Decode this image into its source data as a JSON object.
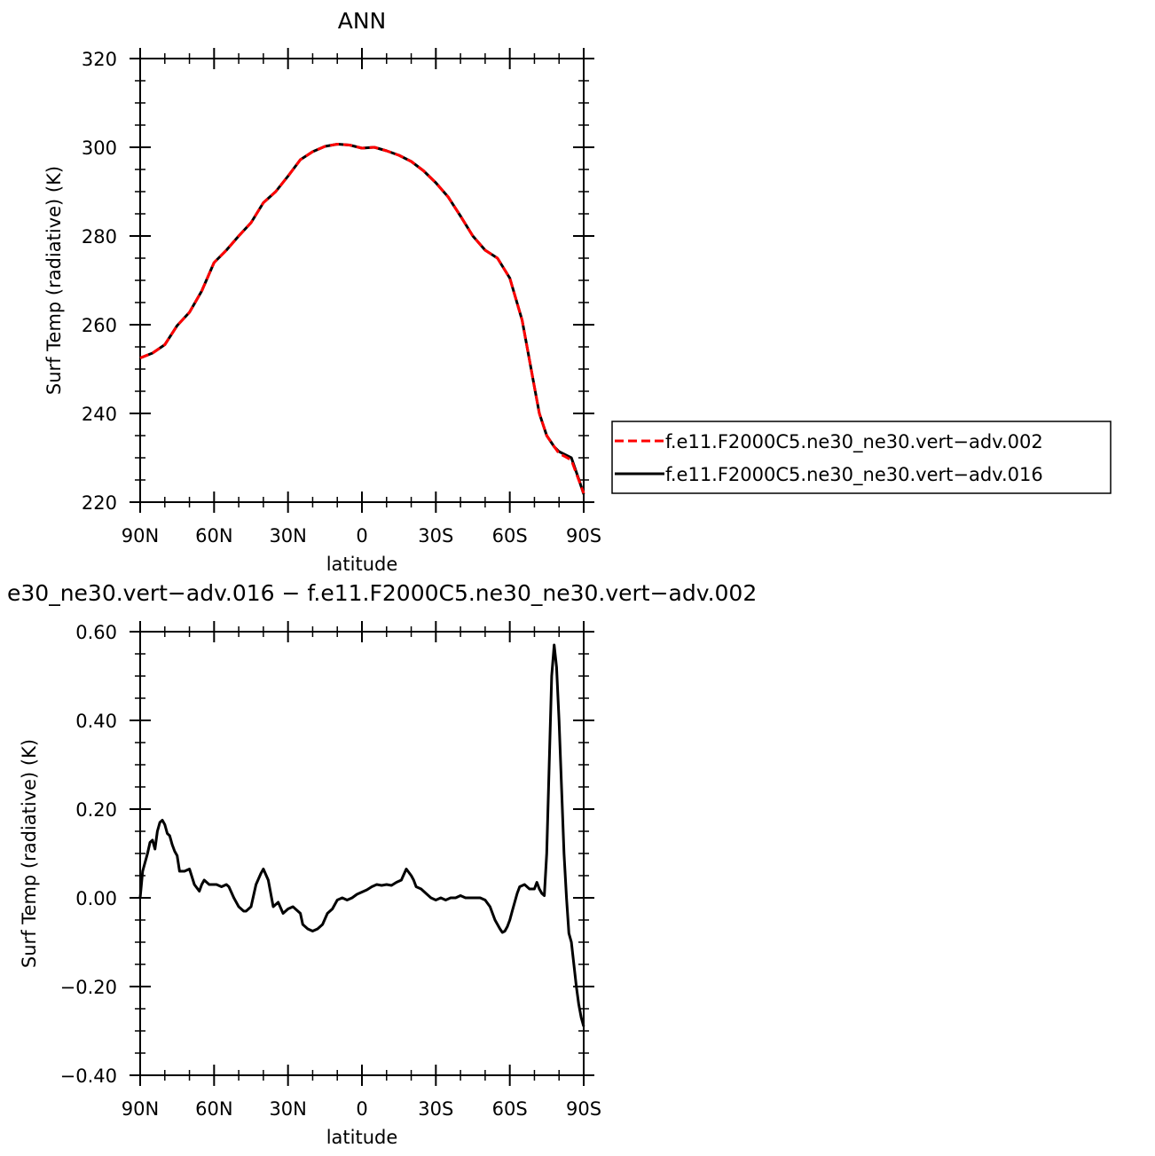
{
  "chart_data": [
    {
      "type": "line",
      "title": "ANN",
      "xlabel": "latitude",
      "ylabel": "Surf Temp (radiative) (K)",
      "xlim": [
        90,
        -90
      ],
      "ylim": [
        220,
        320
      ],
      "x_ticks": [
        {
          "value": 90,
          "label": "90N"
        },
        {
          "value": 60,
          "label": "60N"
        },
        {
          "value": 30,
          "label": "30N"
        },
        {
          "value": 0,
          "label": "0"
        },
        {
          "value": -30,
          "label": "30S"
        },
        {
          "value": -60,
          "label": "60S"
        },
        {
          "value": -90,
          "label": "90S"
        }
      ],
      "y_ticks": [
        {
          "value": 220,
          "label": "220"
        },
        {
          "value": 240,
          "label": "240"
        },
        {
          "value": 260,
          "label": "260"
        },
        {
          "value": 280,
          "label": "280"
        },
        {
          "value": 300,
          "label": "300"
        },
        {
          "value": 320,
          "label": "320"
        }
      ],
      "x": [
        90,
        85,
        80,
        75,
        70,
        65,
        60,
        55,
        50,
        45,
        40,
        35,
        30,
        25,
        20,
        15,
        10,
        5,
        0,
        -5,
        -10,
        -15,
        -20,
        -25,
        -30,
        -35,
        -40,
        -45,
        -50,
        -55,
        -60,
        -65,
        -68,
        -70,
        -72,
        -75,
        -78,
        -80,
        -85,
        -88,
        -90
      ],
      "series": [
        {
          "name": "f.e11.F2000C5.ne30_ne30.vert-adv.002",
          "color": "#ff0000",
          "dash": "dashed",
          "values": [
            252.5,
            253.6,
            255.5,
            259.8,
            262.8,
            267.6,
            274.0,
            276.8,
            280.0,
            283.0,
            287.5,
            290.0,
            293.5,
            297.2,
            299.0,
            300.2,
            300.7,
            300.5,
            299.8,
            300.0,
            299.2,
            298.2,
            296.8,
            294.7,
            292.0,
            288.8,
            284.5,
            280.0,
            276.8,
            275.0,
            270.5,
            261.0,
            252.0,
            246.0,
            240.0,
            235.0,
            232.5,
            231.0,
            229.5,
            225.0,
            222.0
          ]
        },
        {
          "name": "f.e11.F2000C5.ne30_ne30.vert-adv.016",
          "color": "#000000",
          "dash": "solid",
          "values": [
            252.5,
            253.6,
            255.5,
            259.8,
            262.8,
            267.6,
            274.0,
            276.8,
            280.0,
            283.0,
            287.5,
            290.0,
            293.5,
            297.2,
            299.0,
            300.2,
            300.7,
            300.5,
            299.8,
            300.0,
            299.2,
            298.2,
            296.8,
            294.7,
            292.0,
            288.8,
            284.5,
            280.0,
            276.8,
            275.0,
            270.5,
            261.0,
            252.0,
            246.0,
            240.0,
            235.0,
            232.5,
            231.4,
            230.0,
            225.2,
            221.8
          ]
        }
      ]
    },
    {
      "type": "line",
      "title": "e30_ne30.vert−adv.016 − f.e11.F2000C5.ne30_ne30.vert−adv.002",
      "xlabel": "latitude",
      "ylabel": "Surf Temp (radiative) (K)",
      "xlim": [
        90,
        -90
      ],
      "ylim": [
        -0.4,
        0.6
      ],
      "x_ticks": [
        {
          "value": 90,
          "label": "90N"
        },
        {
          "value": 60,
          "label": "60N"
        },
        {
          "value": 30,
          "label": "30N"
        },
        {
          "value": 0,
          "label": "0"
        },
        {
          "value": -30,
          "label": "30S"
        },
        {
          "value": -60,
          "label": "60S"
        },
        {
          "value": -90,
          "label": "90S"
        }
      ],
      "y_ticks": [
        {
          "value": -0.4,
          "label": "−0.40"
        },
        {
          "value": -0.2,
          "label": "−0.20"
        },
        {
          "value": 0.0,
          "label": "0.00"
        },
        {
          "value": 0.2,
          "label": "0.20"
        },
        {
          "value": 0.4,
          "label": "0.40"
        },
        {
          "value": 0.6,
          "label": "0.60"
        }
      ],
      "x": [
        90,
        89,
        87,
        86,
        85,
        84,
        83,
        82,
        81,
        80,
        79,
        78,
        77,
        76,
        75,
        74,
        72,
        70,
        68,
        66,
        65,
        64,
        62,
        61,
        59,
        57,
        55,
        54,
        52,
        50,
        48,
        47,
        45,
        43,
        41,
        40,
        38,
        36,
        34,
        32,
        30,
        28,
        25,
        24,
        22,
        20,
        18,
        16,
        14,
        12,
        10,
        8,
        6,
        4,
        2,
        0,
        -2,
        -4,
        -6,
        -8,
        -10,
        -12,
        -14,
        -16,
        -18,
        -20,
        -21,
        -22,
        -24,
        -26,
        -28,
        -30,
        -32,
        -34,
        -36,
        -38,
        -40,
        -42,
        -44,
        -46,
        -48,
        -50,
        -52,
        -54,
        -56,
        -57,
        -58,
        -59,
        -60,
        -61,
        -62,
        -63,
        -64,
        -66,
        -68,
        -70,
        -71,
        -72,
        -73,
        -74,
        -75,
        -76,
        -77,
        -78,
        -79,
        -80,
        -81,
        -82,
        -83,
        -84,
        -85,
        -86,
        -87,
        -88,
        -89,
        -90
      ],
      "series": [
        {
          "name": "",
          "color": "#000000",
          "dash": "solid",
          "values": [
            0.0,
            0.06,
            0.1,
            0.125,
            0.13,
            0.11,
            0.15,
            0.17,
            0.175,
            0.165,
            0.145,
            0.14,
            0.12,
            0.105,
            0.095,
            0.06,
            0.06,
            0.065,
            0.03,
            0.015,
            0.03,
            0.04,
            0.03,
            0.03,
            0.03,
            0.025,
            0.03,
            0.025,
            0.0,
            -0.02,
            -0.03,
            -0.03,
            -0.02,
            0.03,
            0.055,
            0.065,
            0.04,
            -0.02,
            -0.01,
            -0.035,
            -0.025,
            -0.02,
            -0.035,
            -0.06,
            -0.07,
            -0.075,
            -0.07,
            -0.06,
            -0.035,
            -0.025,
            -0.005,
            0.0,
            -0.005,
            0.0,
            0.008,
            0.013,
            0.018,
            0.025,
            0.03,
            0.028,
            0.03,
            0.028,
            0.035,
            0.04,
            0.065,
            0.05,
            0.04,
            0.025,
            0.02,
            0.01,
            0.0,
            -0.005,
            0.0,
            -0.005,
            0.0,
            0.0,
            0.005,
            0.0,
            0.0,
            0.0,
            0.0,
            -0.005,
            -0.02,
            -0.05,
            -0.07,
            -0.078,
            -0.075,
            -0.065,
            -0.05,
            -0.03,
            -0.01,
            0.01,
            0.025,
            0.03,
            0.02,
            0.02,
            0.035,
            0.02,
            0.01,
            0.005,
            0.1,
            0.3,
            0.5,
            0.57,
            0.52,
            0.4,
            0.25,
            0.1,
            0.0,
            -0.08,
            -0.1,
            -0.15,
            -0.2,
            -0.24,
            -0.27,
            -0.29
          ]
        }
      ]
    }
  ],
  "legend": {
    "entries": [
      {
        "label": "f.e11.F2000C5.ne30_ne30.vert−adv.002",
        "color": "#ff0000",
        "dash": "dashed"
      },
      {
        "label": "f.e11.F2000C5.ne30_ne30.vert−adv.016",
        "color": "#000000",
        "dash": "solid"
      }
    ]
  }
}
